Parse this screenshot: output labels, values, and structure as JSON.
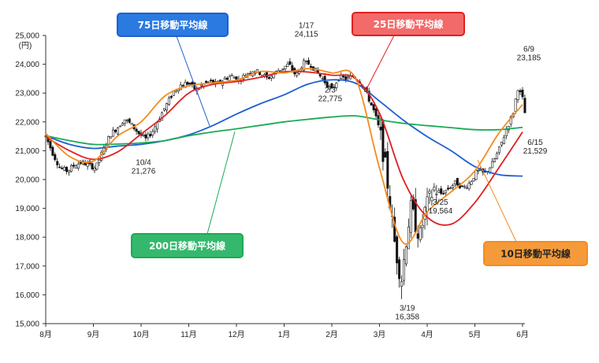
{
  "chart_data": {
    "type": "line",
    "subtype": "candlestick-with-moving-averages",
    "title": "",
    "ylabel": "(円)",
    "ylim": [
      15000,
      25000
    ],
    "y_ticks": [
      "15,000",
      "16,000",
      "17,000",
      "18,000",
      "19,000",
      "20,000",
      "21,000",
      "22,000",
      "23,000",
      "24,000",
      "25,000"
    ],
    "x_categories": [
      "8月",
      "9月",
      "10月",
      "11月",
      "12月",
      "1月",
      "2月",
      "3月",
      "4月",
      "5月",
      "6月"
    ],
    "grid": false,
    "series": [
      {
        "name": "75日移動平均線",
        "color": "#1f5fd0",
        "points": [
          [
            0,
            21520
          ],
          [
            0.5,
            21220
          ],
          [
            1.0,
            21080
          ],
          [
            1.5,
            21160
          ],
          [
            2.0,
            21220
          ],
          [
            2.5,
            21350
          ],
          [
            3.0,
            21550
          ],
          [
            3.5,
            21870
          ],
          [
            4.0,
            22270
          ],
          [
            4.5,
            22630
          ],
          [
            5.0,
            22940
          ],
          [
            5.5,
            23310
          ],
          [
            6.0,
            23460
          ],
          [
            6.5,
            23340
          ],
          [
            7.0,
            22720
          ],
          [
            7.5,
            22060
          ],
          [
            8.0,
            21490
          ],
          [
            8.5,
            21000
          ],
          [
            9.0,
            20450
          ],
          [
            9.5,
            20170
          ],
          [
            10.0,
            20120
          ]
        ]
      },
      {
        "name": "200日移動平均線",
        "color": "#1aaa55",
        "points": [
          [
            0,
            21520
          ],
          [
            0.5,
            21350
          ],
          [
            1.0,
            21220
          ],
          [
            1.5,
            21230
          ],
          [
            2.0,
            21270
          ],
          [
            2.5,
            21350
          ],
          [
            3.0,
            21520
          ],
          [
            3.5,
            21650
          ],
          [
            4.0,
            21760
          ],
          [
            4.5,
            21880
          ],
          [
            5.0,
            22000
          ],
          [
            5.5,
            22090
          ],
          [
            6.0,
            22170
          ],
          [
            6.5,
            22210
          ],
          [
            7.0,
            22070
          ],
          [
            7.5,
            21950
          ],
          [
            8.0,
            21870
          ],
          [
            8.5,
            21800
          ],
          [
            9.0,
            21730
          ],
          [
            9.5,
            21730
          ],
          [
            10.0,
            21810
          ]
        ]
      },
      {
        "name": "25日移動平均線",
        "color": "#e02020",
        "points": [
          [
            0,
            21480
          ],
          [
            0.5,
            21000
          ],
          [
            1.0,
            20700
          ],
          [
            1.5,
            20950
          ],
          [
            2.0,
            21580
          ],
          [
            2.5,
            22220
          ],
          [
            3.0,
            23000
          ],
          [
            3.5,
            23300
          ],
          [
            4.0,
            23400
          ],
          [
            4.5,
            23550
          ],
          [
            5.0,
            23740
          ],
          [
            5.5,
            23730
          ],
          [
            6.0,
            23620
          ],
          [
            6.5,
            23500
          ],
          [
            7.0,
            22300
          ],
          [
            7.5,
            20000
          ],
          [
            8.0,
            18700
          ],
          [
            8.5,
            18450
          ],
          [
            9.0,
            19200
          ],
          [
            9.5,
            20400
          ],
          [
            10.0,
            21650
          ]
        ]
      },
      {
        "name": "10日移動平均線",
        "color": "#f58a1e",
        "points": [
          [
            0,
            21600
          ],
          [
            0.5,
            20800
          ],
          [
            1.0,
            20640
          ],
          [
            1.5,
            21500
          ],
          [
            2.0,
            22000
          ],
          [
            2.5,
            22900
          ],
          [
            3.0,
            23250
          ],
          [
            3.5,
            23350
          ],
          [
            4.0,
            23450
          ],
          [
            4.5,
            23750
          ],
          [
            5.0,
            23700
          ],
          [
            5.5,
            23850
          ],
          [
            6.0,
            23700
          ],
          [
            6.5,
            23500
          ],
          [
            7.0,
            20400
          ],
          [
            7.5,
            17800
          ],
          [
            8.0,
            18880
          ],
          [
            8.5,
            19570
          ],
          [
            9.0,
            20300
          ],
          [
            9.5,
            21600
          ],
          [
            10.0,
            22600
          ]
        ]
      }
    ],
    "price_points": [
      [
        0.0,
        21500
      ],
      [
        0.15,
        20900
      ],
      [
        0.3,
        20400
      ],
      [
        0.45,
        20300
      ],
      [
        0.6,
        20500
      ],
      [
        0.75,
        20600
      ],
      [
        0.9,
        20500
      ],
      [
        1.05,
        20400
      ],
      [
        1.2,
        21000
      ],
      [
        1.35,
        21550
      ],
      [
        1.5,
        21800
      ],
      [
        1.65,
        22100
      ],
      [
        1.8,
        21900
      ],
      [
        1.95,
        21600
      ],
      [
        2.1,
        21400
      ],
      [
        2.25,
        21700
      ],
      [
        2.4,
        22200
      ],
      [
        2.55,
        22650
      ],
      [
        2.7,
        23100
      ],
      [
        2.85,
        23300
      ],
      [
        3.0,
        23350
      ],
      [
        3.15,
        23100
      ],
      [
        3.3,
        23300
      ],
      [
        3.45,
        23400
      ],
      [
        3.6,
        23300
      ],
      [
        3.75,
        23500
      ],
      [
        3.9,
        23600
      ],
      [
        4.05,
        23450
      ],
      [
        4.2,
        23650
      ],
      [
        4.35,
        23800
      ],
      [
        4.5,
        23700
      ],
      [
        4.65,
        23500
      ],
      [
        4.8,
        23700
      ],
      [
        4.95,
        23850
      ],
      [
        5.1,
        24000
      ],
      [
        5.25,
        23600
      ],
      [
        5.4,
        24050
      ],
      [
        5.55,
        24000
      ],
      [
        5.7,
        23700
      ],
      [
        5.85,
        23400
      ],
      [
        6.0,
        23100
      ],
      [
        6.15,
        23550
      ],
      [
        6.3,
        23500
      ],
      [
        6.45,
        23600
      ],
      [
        6.6,
        23400
      ],
      [
        6.75,
        22900
      ],
      [
        6.9,
        22300
      ],
      [
        7.0,
        21700
      ],
      [
        7.1,
        20700
      ],
      [
        7.2,
        19500
      ],
      [
        7.3,
        18000
      ],
      [
        7.4,
        17000
      ],
      [
        7.47,
        16552
      ],
      [
        7.55,
        17800
      ],
      [
        7.65,
        19000
      ],
      [
        7.75,
        18500
      ],
      [
        7.85,
        18000
      ],
      [
        7.95,
        18900
      ],
      [
        8.05,
        19300
      ],
      [
        8.15,
        19700
      ],
      [
        8.3,
        19500
      ],
      [
        8.45,
        19700
      ],
      [
        8.6,
        19900
      ],
      [
        8.75,
        19700
      ],
      [
        8.9,
        19900
      ],
      [
        9.05,
        20300
      ],
      [
        9.2,
        20200
      ],
      [
        9.35,
        20500
      ],
      [
        9.5,
        21000
      ],
      [
        9.65,
        21700
      ],
      [
        9.8,
        22300
      ],
      [
        9.9,
        23185
      ],
      [
        10.0,
        22800
      ],
      [
        10.05,
        22300
      ]
    ],
    "annotations": [
      {
        "text_date": "10/4",
        "text_value": "21,276",
        "x": 2.05,
        "y": 21276
      },
      {
        "text_date": "1/17",
        "text_value": "24,115",
        "x": 5.3,
        "y": 24115
      },
      {
        "text_date": "2/3",
        "text_value": "22,775",
        "x": 5.8,
        "y": 22775
      },
      {
        "text_date": "3/25",
        "text_value": "19,564",
        "x": 7.75,
        "y": 19564
      },
      {
        "text_date": "3/19",
        "text_value": "16,358",
        "x": 7.45,
        "y": 16358
      },
      {
        "text_date": "6/9",
        "text_value": "23,185",
        "x": 9.9,
        "y": 23185
      },
      {
        "text_date": "6/15",
        "text_value": "21,529",
        "x": 10.0,
        "y": 21529
      }
    ],
    "labels": [
      {
        "text": "75日移動平均線",
        "color": "#1f5fd0",
        "fill": "#2a7ae2",
        "text_color": "#ffffff"
      },
      {
        "text": "25日移動平均線",
        "color": "#e02020",
        "fill": "#f26a6a",
        "text_color": "#ffffff"
      },
      {
        "text": "200日移動平均線",
        "color": "#1aaa55",
        "fill": "#35b86d",
        "text_color": "#ffffff"
      },
      {
        "text": "10日移動平均線",
        "color": "#f58a1e",
        "fill": "#f59a3a",
        "text_color": "#222222"
      }
    ]
  }
}
